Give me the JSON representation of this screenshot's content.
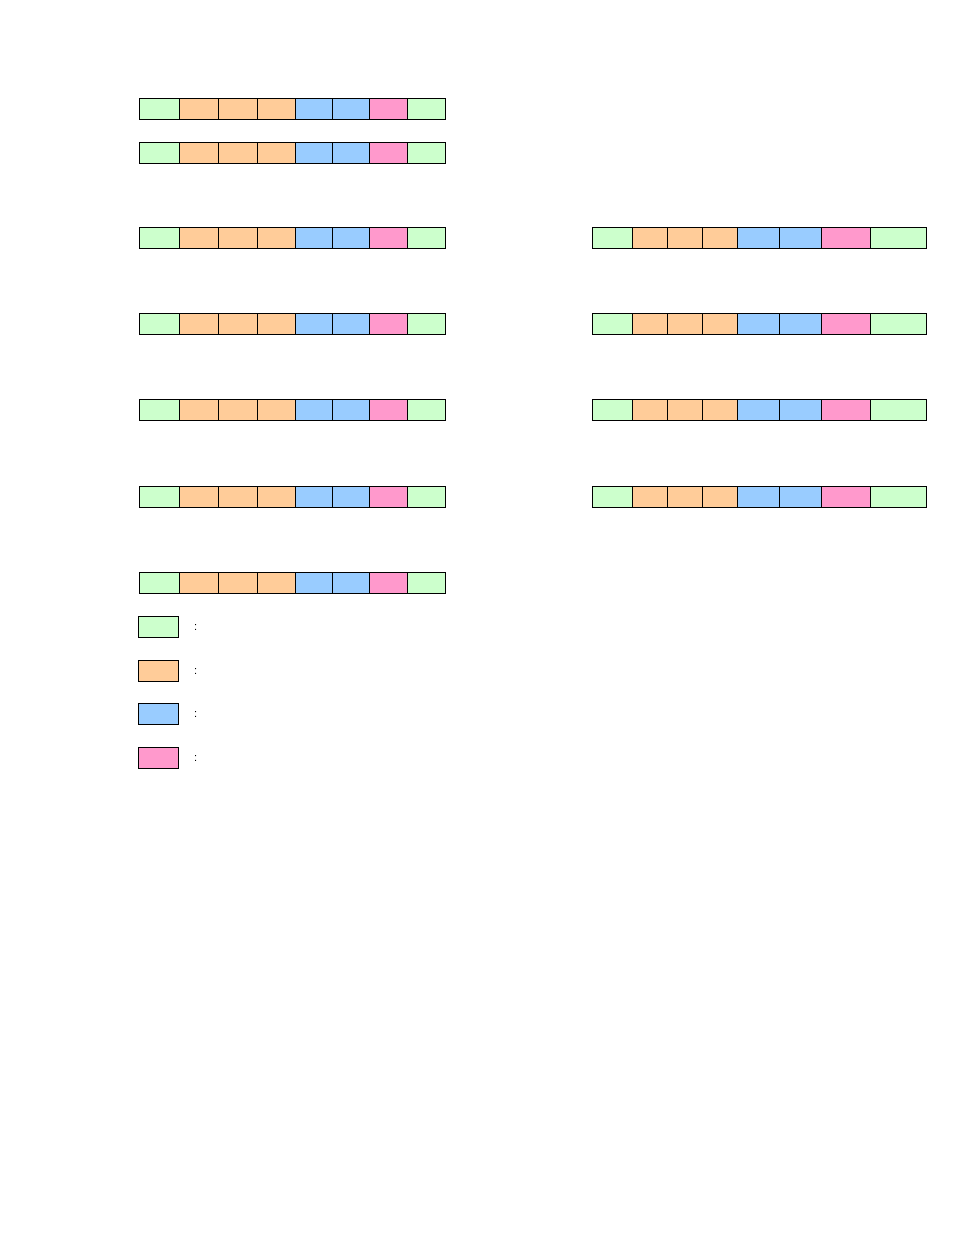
{
  "colors": {
    "green": "#ccffcc",
    "orange": "#ffcc99",
    "blue": "#99ccff",
    "pink": "#ff99cc"
  },
  "bar_pattern": [
    "green",
    "orange",
    "orange",
    "orange",
    "blue",
    "blue",
    "pink",
    "green"
  ],
  "left_bar_count": 7,
  "right_bar_count": 4,
  "legend": [
    {
      "color": "green",
      "label": ":"
    },
    {
      "color": "orange",
      "label": ":"
    },
    {
      "color": "blue",
      "label": ":"
    },
    {
      "color": "pink",
      "label": ":"
    }
  ]
}
